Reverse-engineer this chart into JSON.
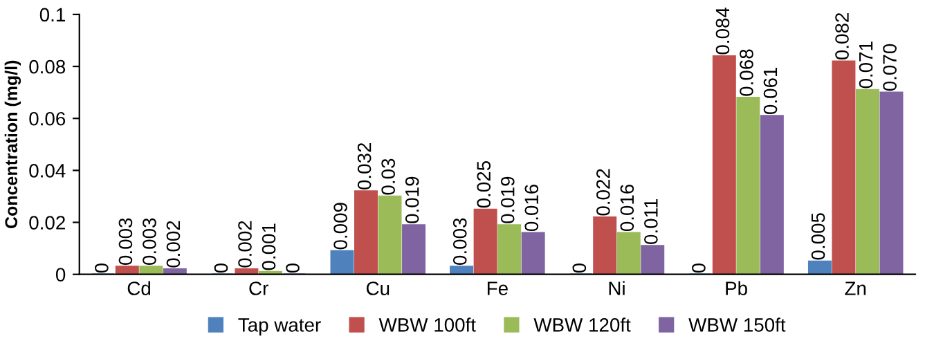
{
  "chart_data": {
    "type": "bar",
    "ylabel": "Concentration (mg/l)",
    "categories": [
      "Cd",
      "Cr",
      "Cu",
      "Fe",
      "Ni",
      "Pb",
      "Zn"
    ],
    "series": [
      {
        "name": "Tap water",
        "color": "#4f81bd",
        "values": [
          0,
          0,
          0.009,
          0.003,
          0,
          0,
          0.005
        ],
        "value_labels": [
          "0",
          "0",
          "0.009",
          "0.003",
          "0",
          "0",
          "0.005"
        ]
      },
      {
        "name": "WBW 100ft",
        "color": "#c0504d",
        "values": [
          0.003,
          0.002,
          0.032,
          0.025,
          0.022,
          0.084,
          0.082
        ],
        "value_labels": [
          "0.003",
          "0.002",
          "0.032",
          "0.025",
          "0.022",
          "0.084",
          "0.082"
        ]
      },
      {
        "name": "WBW 120ft",
        "color": "#9bbb59",
        "values": [
          0.003,
          0.001,
          0.03,
          0.019,
          0.016,
          0.068,
          0.071
        ],
        "value_labels": [
          "0.003",
          "0.001",
          "0.03",
          "0.019",
          "0.016",
          "0.068",
          "0.071"
        ]
      },
      {
        "name": "WBW 150ft",
        "color": "#8064a2",
        "values": [
          0.002,
          0,
          0.019,
          0.016,
          0.011,
          0.061,
          0.07
        ],
        "value_labels": [
          "0.002",
          "0",
          "0.019",
          "0.016",
          "0.011",
          "0.061",
          "0.070"
        ]
      }
    ],
    "ylim": [
      0,
      0.1
    ],
    "yticks": [
      0,
      0.02,
      0.04,
      0.06,
      0.08,
      0.1
    ],
    "grid": false,
    "legend": "bottom"
  }
}
